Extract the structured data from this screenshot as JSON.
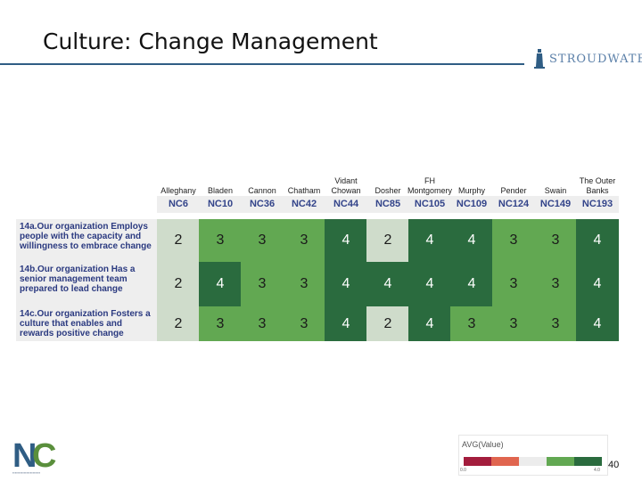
{
  "slide": {
    "title": "Culture:  Change Management",
    "brand": "STROUDWATER",
    "page_number": "40",
    "colors": {
      "rule": "#2f5d84",
      "brand": "#5a7fa8",
      "question_text": "#2b3a80"
    }
  },
  "legend": {
    "title": "AVG(Value)",
    "min_label": "0.0",
    "max_label": "4.0",
    "colors": [
      "#a31d3d",
      "#e0654f",
      "#ececec",
      "#62a852",
      "#2a6b3e"
    ]
  },
  "chart_data": {
    "type": "heatmap",
    "columns": [
      {
        "name": "Alleghany",
        "code": "NC6"
      },
      {
        "name": "Bladen",
        "code": "NC10"
      },
      {
        "name": "Cannon",
        "code": "NC36"
      },
      {
        "name": "Chatham",
        "code": "NC42"
      },
      {
        "name": "Vidant Chowan",
        "code": "NC44"
      },
      {
        "name": "Dosher",
        "code": "NC85"
      },
      {
        "name": "FH Montgomery",
        "code": "NC105"
      },
      {
        "name": "Murphy",
        "code": "NC109"
      },
      {
        "name": "Pender",
        "code": "NC124"
      },
      {
        "name": "Swain",
        "code": "NC149"
      },
      {
        "name": "The Outer Banks",
        "code": "NC193"
      }
    ],
    "rows": [
      {
        "label": "14a.Our organization Employs people with the capacity and willingness to embrace change",
        "values": [
          2,
          3,
          3,
          3,
          4,
          2,
          4,
          4,
          3,
          3,
          4
        ]
      },
      {
        "label": "14b.Our organization Has a senior management team prepared to lead change",
        "values": [
          2,
          4,
          3,
          3,
          4,
          4,
          4,
          4,
          3,
          3,
          4
        ]
      },
      {
        "label": "14c.Our organization Fosters a culture that enables and rewards positive change",
        "values": [
          2,
          3,
          3,
          3,
          4,
          2,
          4,
          3,
          3,
          3,
          4
        ]
      }
    ],
    "color_scale": {
      "2": "#cfdccb",
      "3": "#62a852",
      "4": "#2a6b3e"
    }
  }
}
